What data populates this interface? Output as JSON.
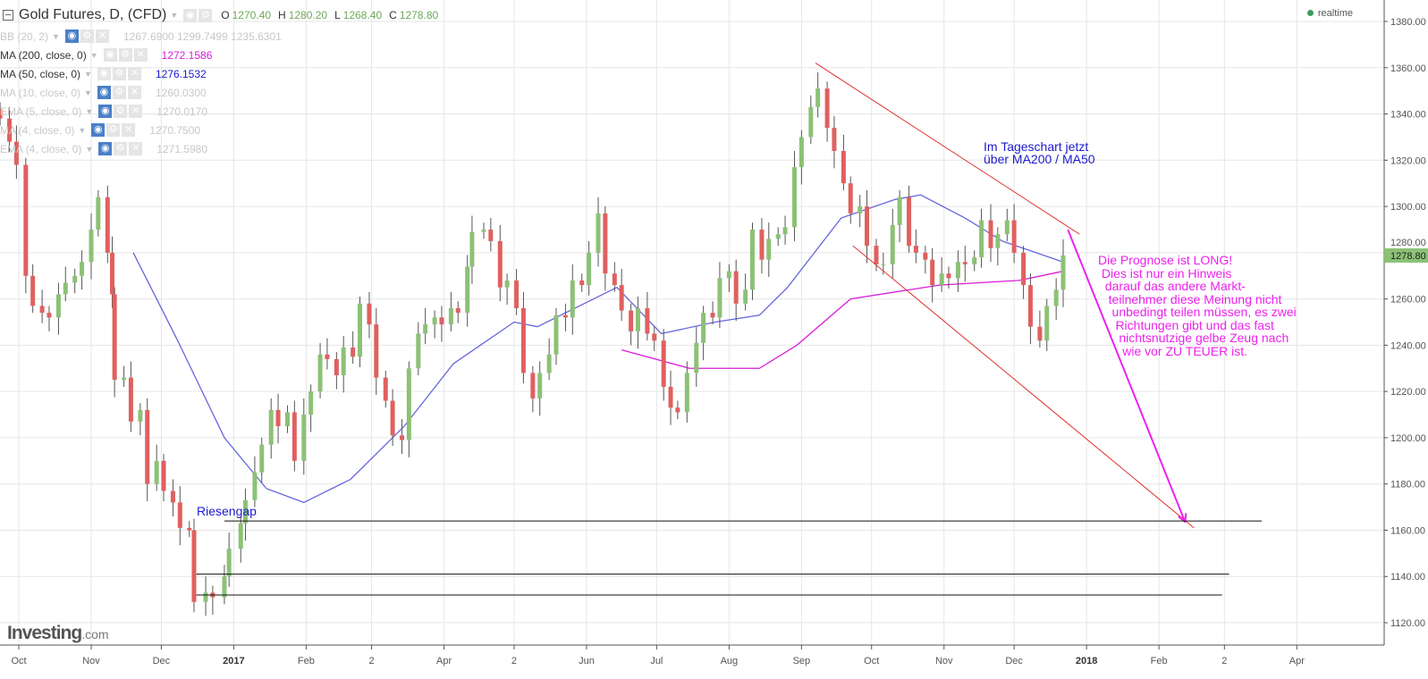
{
  "header": {
    "symbol_title": "Gold Futures, D, (CFD)",
    "ohlc": [
      {
        "key": "O",
        "value": "1270.40"
      },
      {
        "key": "H",
        "value": "1280.20"
      },
      {
        "key": "L",
        "value": "1268.40"
      },
      {
        "key": "C",
        "value": "1278.80"
      }
    ],
    "realtime_label": "realtime"
  },
  "indicators": [
    {
      "label": "BB (20, 2)",
      "values": "1267.6900  1299.7499  1235.6301",
      "visible": false,
      "eye_on": true
    },
    {
      "label": "MA (200, close, 0)",
      "values": "1272.1586",
      "visible": true,
      "eye_on": false,
      "color": "#d81bd8"
    },
    {
      "label": "MA (50, close, 0)",
      "values": "1276.1532",
      "visible": true,
      "eye_on": false,
      "color": "#1a1acc"
    },
    {
      "label": "MA (10, close, 0)",
      "values": "1260.0300",
      "visible": false,
      "eye_on": true
    },
    {
      "label": "EMA (5, close, 0)",
      "values": "1270.0170",
      "visible": false,
      "eye_on": true
    },
    {
      "label": "MA (4, close, 0)",
      "values": "1270.7500",
      "visible": false,
      "eye_on": true
    },
    {
      "label": "EMA (4, close, 0)",
      "values": "1271.5980",
      "visible": false,
      "eye_on": true
    }
  ],
  "logo": {
    "brand": "Investing",
    "suffix": ".com"
  },
  "annotations": {
    "gap": "Riesengap",
    "daily": "Im Tageschart jetzt\nüber MA200 / MA50",
    "forecast": "Die Prognose ist LONG!\n Dies ist nur ein Hinweis\n  darauf das andere Markt-\n   teilnehmer diese Meinung nicht\n    unbedingt teilen müssen, es zwei\n     Richtungen gibt und das fast\n      nichtsnutzige gelbe Zeug nach\n       wie vor ZU TEUER ist."
  },
  "chart_data": {
    "type": "candlestick",
    "title": "Gold Futures, D, (CFD)",
    "ylim": [
      1110,
      1385
    ],
    "grid": true,
    "up_color": "#8cc176",
    "down_color": "#e06060",
    "last_price": "1278.80",
    "y_ticks": [
      "1380.00",
      "1360.00",
      "1340.00",
      "1320.00",
      "1300.00",
      "1280.00",
      "1260.00",
      "1240.00",
      "1220.00",
      "1200.00",
      "1180.00",
      "1160.00",
      "1140.00",
      "1120.00"
    ],
    "x_ticks": [
      {
        "label": "Oct",
        "date": "2016-10-01"
      },
      {
        "label": "Nov",
        "date": "2016-11-01"
      },
      {
        "label": "Dec",
        "date": "2016-12-01"
      },
      {
        "label": "2017",
        "date": "2017-01-01",
        "bold": true
      },
      {
        "label": "Feb",
        "date": "2017-02-01"
      },
      {
        "label": "2",
        "date": "2017-03-01"
      },
      {
        "label": "Apr",
        "date": "2017-04-01"
      },
      {
        "label": "2",
        "date": "2017-05-01"
      },
      {
        "label": "Jun",
        "date": "2017-06-01"
      },
      {
        "label": "Jul",
        "date": "2017-07-01"
      },
      {
        "label": "Aug",
        "date": "2017-08-01"
      },
      {
        "label": "Sep",
        "date": "2017-09-01"
      },
      {
        "label": "Oct",
        "date": "2017-10-01"
      },
      {
        "label": "Nov",
        "date": "2017-11-01"
      },
      {
        "label": "Dec",
        "date": "2017-12-01"
      },
      {
        "label": "2018",
        "date": "2018-01-01",
        "bold": true
      },
      {
        "label": "Feb",
        "date": "2018-02-01"
      },
      {
        "label": "2",
        "date": "2018-03-01"
      },
      {
        "label": "Apr",
        "date": "2018-04-01"
      }
    ],
    "closes": [
      [
        "2016-09-23",
        1338
      ],
      [
        "2016-09-27",
        1328
      ],
      [
        "2016-09-30",
        1318
      ],
      [
        "2016-10-04",
        1270
      ],
      [
        "2016-10-07",
        1257
      ],
      [
        "2016-10-11",
        1254
      ],
      [
        "2016-10-14",
        1252
      ],
      [
        "2016-10-18",
        1262
      ],
      [
        "2016-10-21",
        1267
      ],
      [
        "2016-10-25",
        1270
      ],
      [
        "2016-10-28",
        1276
      ],
      [
        "2016-11-01",
        1290
      ],
      [
        "2016-11-04",
        1304
      ],
      [
        "2016-11-08",
        1280
      ],
      [
        "2016-11-10",
        1262
      ],
      [
        "2016-11-11",
        1225
      ],
      [
        "2016-11-15",
        1226
      ],
      [
        "2016-11-18",
        1207
      ],
      [
        "2016-11-22",
        1212
      ],
      [
        "2016-11-25",
        1180
      ],
      [
        "2016-11-29",
        1190
      ],
      [
        "2016-12-02",
        1177
      ],
      [
        "2016-12-06",
        1172
      ],
      [
        "2016-12-09",
        1161
      ],
      [
        "2016-12-13",
        1160
      ],
      [
        "2016-12-15",
        1129
      ],
      [
        "2016-12-20",
        1133
      ],
      [
        "2016-12-23",
        1131
      ],
      [
        "2016-12-28",
        1140
      ],
      [
        "2016-12-30",
        1152
      ],
      [
        "2017-01-04",
        1163
      ],
      [
        "2017-01-06",
        1173
      ],
      [
        "2017-01-10",
        1185
      ],
      [
        "2017-01-13",
        1197
      ],
      [
        "2017-01-17",
        1212
      ],
      [
        "2017-01-20",
        1205
      ],
      [
        "2017-01-24",
        1211
      ],
      [
        "2017-01-27",
        1190
      ],
      [
        "2017-01-31",
        1210
      ],
      [
        "2017-02-03",
        1220
      ],
      [
        "2017-02-07",
        1236
      ],
      [
        "2017-02-10",
        1234
      ],
      [
        "2017-02-14",
        1227
      ],
      [
        "2017-02-17",
        1239
      ],
      [
        "2017-02-21",
        1235
      ],
      [
        "2017-02-24",
        1258
      ],
      [
        "2017-02-28",
        1249
      ],
      [
        "2017-03-03",
        1226
      ],
      [
        "2017-03-07",
        1216
      ],
      [
        "2017-03-10",
        1201
      ],
      [
        "2017-03-14",
        1199
      ],
      [
        "2017-03-17",
        1230
      ],
      [
        "2017-03-21",
        1245
      ],
      [
        "2017-03-24",
        1249
      ],
      [
        "2017-03-28",
        1252
      ],
      [
        "2017-03-31",
        1249
      ],
      [
        "2017-04-04",
        1256
      ],
      [
        "2017-04-07",
        1254
      ],
      [
        "2017-04-11",
        1274
      ],
      [
        "2017-04-13",
        1289
      ],
      [
        "2017-04-18",
        1290
      ],
      [
        "2017-04-21",
        1285
      ],
      [
        "2017-04-25",
        1265
      ],
      [
        "2017-04-28",
        1268
      ],
      [
        "2017-05-02",
        1256
      ],
      [
        "2017-05-05",
        1228
      ],
      [
        "2017-05-09",
        1217
      ],
      [
        "2017-05-12",
        1228
      ],
      [
        "2017-05-16",
        1236
      ],
      [
        "2017-05-19",
        1253
      ],
      [
        "2017-05-23",
        1252
      ],
      [
        "2017-05-26",
        1268
      ],
      [
        "2017-05-30",
        1266
      ],
      [
        "2017-06-02",
        1280
      ],
      [
        "2017-06-06",
        1297
      ],
      [
        "2017-06-09",
        1271
      ],
      [
        "2017-06-13",
        1266
      ],
      [
        "2017-06-16",
        1255
      ],
      [
        "2017-06-20",
        1246
      ],
      [
        "2017-06-23",
        1256
      ],
      [
        "2017-06-27",
        1245
      ],
      [
        "2017-06-30",
        1242
      ],
      [
        "2017-07-04",
        1222
      ],
      [
        "2017-07-07",
        1213
      ],
      [
        "2017-07-10",
        1211
      ],
      [
        "2017-07-14",
        1228
      ],
      [
        "2017-07-18",
        1241
      ],
      [
        "2017-07-21",
        1254
      ],
      [
        "2017-07-25",
        1252
      ],
      [
        "2017-07-28",
        1269
      ],
      [
        "2017-08-01",
        1272
      ],
      [
        "2017-08-04",
        1258
      ],
      [
        "2017-08-08",
        1264
      ],
      [
        "2017-08-11",
        1290
      ],
      [
        "2017-08-15",
        1277
      ],
      [
        "2017-08-18",
        1286
      ],
      [
        "2017-08-22",
        1288
      ],
      [
        "2017-08-25",
        1291
      ],
      [
        "2017-08-29",
        1317
      ],
      [
        "2017-09-01",
        1330
      ],
      [
        "2017-09-05",
        1343
      ],
      [
        "2017-09-08",
        1351
      ],
      [
        "2017-09-12",
        1334
      ],
      [
        "2017-09-15",
        1324
      ],
      [
        "2017-09-19",
        1310
      ],
      [
        "2017-09-22",
        1297
      ],
      [
        "2017-09-26",
        1300
      ],
      [
        "2017-09-29",
        1283
      ],
      [
        "2017-10-03",
        1275
      ],
      [
        "2017-10-06",
        1275
      ],
      [
        "2017-10-10",
        1292
      ],
      [
        "2017-10-13",
        1304
      ],
      [
        "2017-10-17",
        1283
      ],
      [
        "2017-10-20",
        1280
      ],
      [
        "2017-10-24",
        1277
      ],
      [
        "2017-10-27",
        1266
      ],
      [
        "2017-10-31",
        1271
      ],
      [
        "2017-11-03",
        1269
      ],
      [
        "2017-11-07",
        1276
      ],
      [
        "2017-11-10",
        1275
      ],
      [
        "2017-11-14",
        1278
      ],
      [
        "2017-11-17",
        1294
      ],
      [
        "2017-11-21",
        1282
      ],
      [
        "2017-11-24",
        1288
      ],
      [
        "2017-11-28",
        1294
      ],
      [
        "2017-12-01",
        1280
      ],
      [
        "2017-12-05",
        1266
      ],
      [
        "2017-12-08",
        1248
      ],
      [
        "2017-12-12",
        1242
      ],
      [
        "2017-12-15",
        1257
      ],
      [
        "2017-12-19",
        1264
      ],
      [
        "2017-12-22",
        1278.8
      ]
    ],
    "ma50": [
      [
        "2016-11-19",
        1280
      ],
      [
        "2016-12-08",
        1242
      ],
      [
        "2016-12-28",
        1200
      ],
      [
        "2017-01-15",
        1178
      ],
      [
        "2017-01-31",
        1172
      ],
      [
        "2017-02-20",
        1182
      ],
      [
        "2017-03-15",
        1205
      ],
      [
        "2017-04-05",
        1232
      ],
      [
        "2017-05-01",
        1250
      ],
      [
        "2017-05-11",
        1248
      ],
      [
        "2017-05-25",
        1255
      ],
      [
        "2017-06-14",
        1265
      ],
      [
        "2017-07-03",
        1245
      ],
      [
        "2017-07-26",
        1250
      ],
      [
        "2017-08-14",
        1253
      ],
      [
        "2017-08-26",
        1265
      ],
      [
        "2017-09-18",
        1295
      ],
      [
        "2017-10-11",
        1303
      ],
      [
        "2017-10-22",
        1305
      ],
      [
        "2017-11-10",
        1295
      ],
      [
        "2017-11-26",
        1285
      ],
      [
        "2017-12-22",
        1276
      ]
    ],
    "ma200": [
      [
        "2017-06-16",
        1238
      ],
      [
        "2017-07-15",
        1230
      ],
      [
        "2017-08-14",
        1230
      ],
      [
        "2017-08-30",
        1240
      ],
      [
        "2017-09-22",
        1260
      ],
      [
        "2017-10-30",
        1266
      ],
      [
        "2017-12-03",
        1268
      ],
      [
        "2017-12-22",
        1272
      ]
    ],
    "drawings": [
      {
        "type": "trendline",
        "color": "#e03030",
        "from": [
          "2017-09-07",
          1362
        ],
        "to": [
          "2017-12-29",
          1288
        ]
      },
      {
        "type": "trendline",
        "color": "#e03030",
        "from": [
          "2017-09-23",
          1283
        ],
        "to": [
          "2018-02-16",
          1161
        ]
      },
      {
        "type": "arrow",
        "color": "#ee22ee",
        "from": [
          "2017-12-24",
          1290
        ],
        "to": [
          "2018-02-12",
          1164
        ]
      },
      {
        "type": "horizontal",
        "color": "#111111",
        "from": [
          "2016-12-28",
          1164
        ],
        "to": [
          "2018-03-17",
          1164
        ]
      },
      {
        "type": "horizontal",
        "color": "#111111",
        "from": [
          "2016-12-16",
          1141
        ],
        "to": [
          "2018-03-03",
          1141
        ]
      },
      {
        "type": "horizontal",
        "color": "#111111",
        "from": [
          "2016-12-16",
          1132
        ],
        "to": [
          "2018-02-28",
          1132
        ]
      }
    ]
  }
}
